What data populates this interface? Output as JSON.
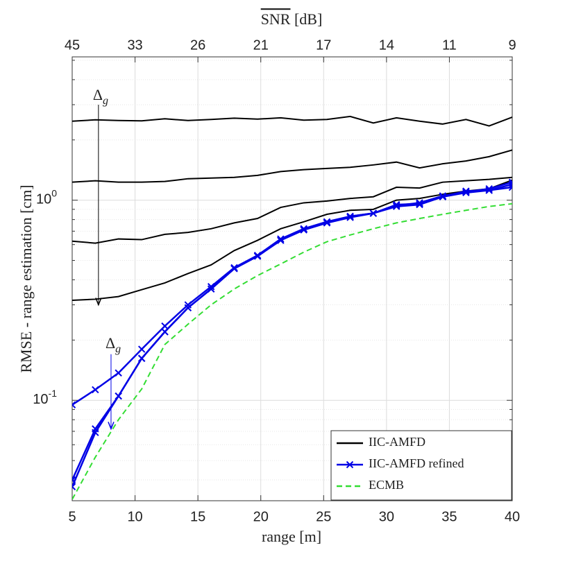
{
  "chart_data": {
    "type": "line",
    "x": [
      5,
      6.84,
      8.68,
      10.53,
      12.37,
      14.21,
      16.05,
      17.89,
      19.74,
      21.58,
      23.42,
      25.26,
      27.11,
      28.95,
      30.79,
      32.63,
      34.47,
      36.32,
      38.16,
      40
    ],
    "xlim": [
      5,
      40
    ],
    "ylim": [
      0.0315,
      5.2
    ],
    "yscale": "log",
    "xticks": [
      5,
      10,
      15,
      20,
      25,
      30,
      35,
      40
    ],
    "x2ticks": [
      {
        "value": 5,
        "label": "45"
      },
      {
        "value": 10,
        "label": "33"
      },
      {
        "value": 15,
        "label": "26"
      },
      {
        "value": 20,
        "label": "21"
      },
      {
        "value": 25,
        "label": "17"
      },
      {
        "value": 30,
        "label": "14"
      },
      {
        "value": 35,
        "label": "11"
      },
      {
        "value": 40,
        "label": "9"
      }
    ],
    "yticks": [
      {
        "value": 0.1,
        "label": "10",
        "exp": "-1"
      },
      {
        "value": 1,
        "label": "10",
        "exp": "0"
      }
    ],
    "yminor": [
      0.04,
      0.05,
      0.06,
      0.07,
      0.08,
      0.09,
      0.2,
      0.3,
      0.4,
      0.5,
      0.6,
      0.7,
      0.8,
      0.9,
      2,
      3,
      4,
      5
    ],
    "xlabel": "range [m]",
    "ylabel": "RMSE - range estimation [cm]",
    "x2label": {
      "overline": "SNR",
      "rest": " [dB]"
    },
    "grid": true,
    "legend": "lower right",
    "series": [
      {
        "name": "IIC-AMFD",
        "color": "#000000",
        "marker": "none",
        "dash": "solid",
        "lines": [
          [
            2.48,
            2.52,
            2.5,
            2.49,
            2.55,
            2.5,
            2.53,
            2.57,
            2.54,
            2.58,
            2.51,
            2.53,
            2.62,
            2.43,
            2.58,
            2.48,
            2.4,
            2.53,
            2.35,
            2.6
          ],
          [
            1.23,
            1.25,
            1.23,
            1.23,
            1.24,
            1.28,
            1.29,
            1.3,
            1.33,
            1.39,
            1.42,
            1.44,
            1.46,
            1.5,
            1.55,
            1.45,
            1.52,
            1.57,
            1.65,
            1.78
          ],
          [
            0.624,
            0.61,
            0.64,
            0.635,
            0.675,
            0.69,
            0.72,
            0.77,
            0.81,
            0.92,
            0.97,
            0.99,
            1.02,
            1.04,
            1.16,
            1.15,
            1.23,
            1.25,
            1.27,
            1.3
          ],
          [
            0.316,
            0.32,
            0.33,
            0.357,
            0.386,
            0.43,
            0.475,
            0.56,
            0.63,
            0.72,
            0.78,
            0.85,
            0.89,
            0.9,
            1.0,
            1.02,
            1.07,
            1.11,
            1.14,
            1.26
          ]
        ]
      },
      {
        "name": "IIC-AMFD refined",
        "color": "#0000e6",
        "marker": "x",
        "dash": "solid",
        "lines": [
          [
            0.095,
            0.113,
            0.137,
            0.18,
            0.235,
            0.3,
            0.37,
            0.46,
            0.53,
            0.64,
            0.72,
            0.78,
            0.83,
            0.86,
            0.93,
            0.95,
            1.04,
            1.09,
            1.12,
            1.16
          ],
          [
            0.04,
            0.072,
            0.105,
            0.162,
            0.22,
            0.29,
            0.36,
            0.455,
            0.525,
            0.63,
            0.71,
            0.77,
            0.82,
            0.86,
            0.95,
            0.96,
            1.04,
            1.11,
            1.12,
            1.2
          ],
          [
            0.037,
            0.069,
            0.105,
            0.162,
            0.22,
            0.29,
            0.36,
            0.455,
            0.525,
            0.63,
            0.715,
            0.775,
            0.83,
            0.86,
            0.94,
            0.97,
            1.05,
            1.1,
            1.14,
            1.23
          ]
        ]
      },
      {
        "name": "ECMB",
        "color": "#33dd33",
        "marker": "none",
        "dash": "dashed",
        "lines": [
          [
            0.032,
            0.052,
            0.08,
            0.114,
            0.19,
            0.24,
            0.3,
            0.36,
            0.42,
            0.48,
            0.55,
            0.62,
            0.67,
            0.72,
            0.77,
            0.81,
            0.85,
            0.89,
            0.93,
            0.96
          ]
        ]
      }
    ],
    "annotations": [
      {
        "text": "Δ",
        "sub": "g",
        "color": "#000000",
        "x": 7.2,
        "y": 3.3,
        "arrow_from": 3.0,
        "arrow_to": 0.3
      },
      {
        "text": "Δ",
        "sub": "g",
        "color": "#0000e6",
        "x": 8.2,
        "y": 0.19,
        "arrow_from": 0.17,
        "arrow_to": 0.072
      }
    ]
  }
}
